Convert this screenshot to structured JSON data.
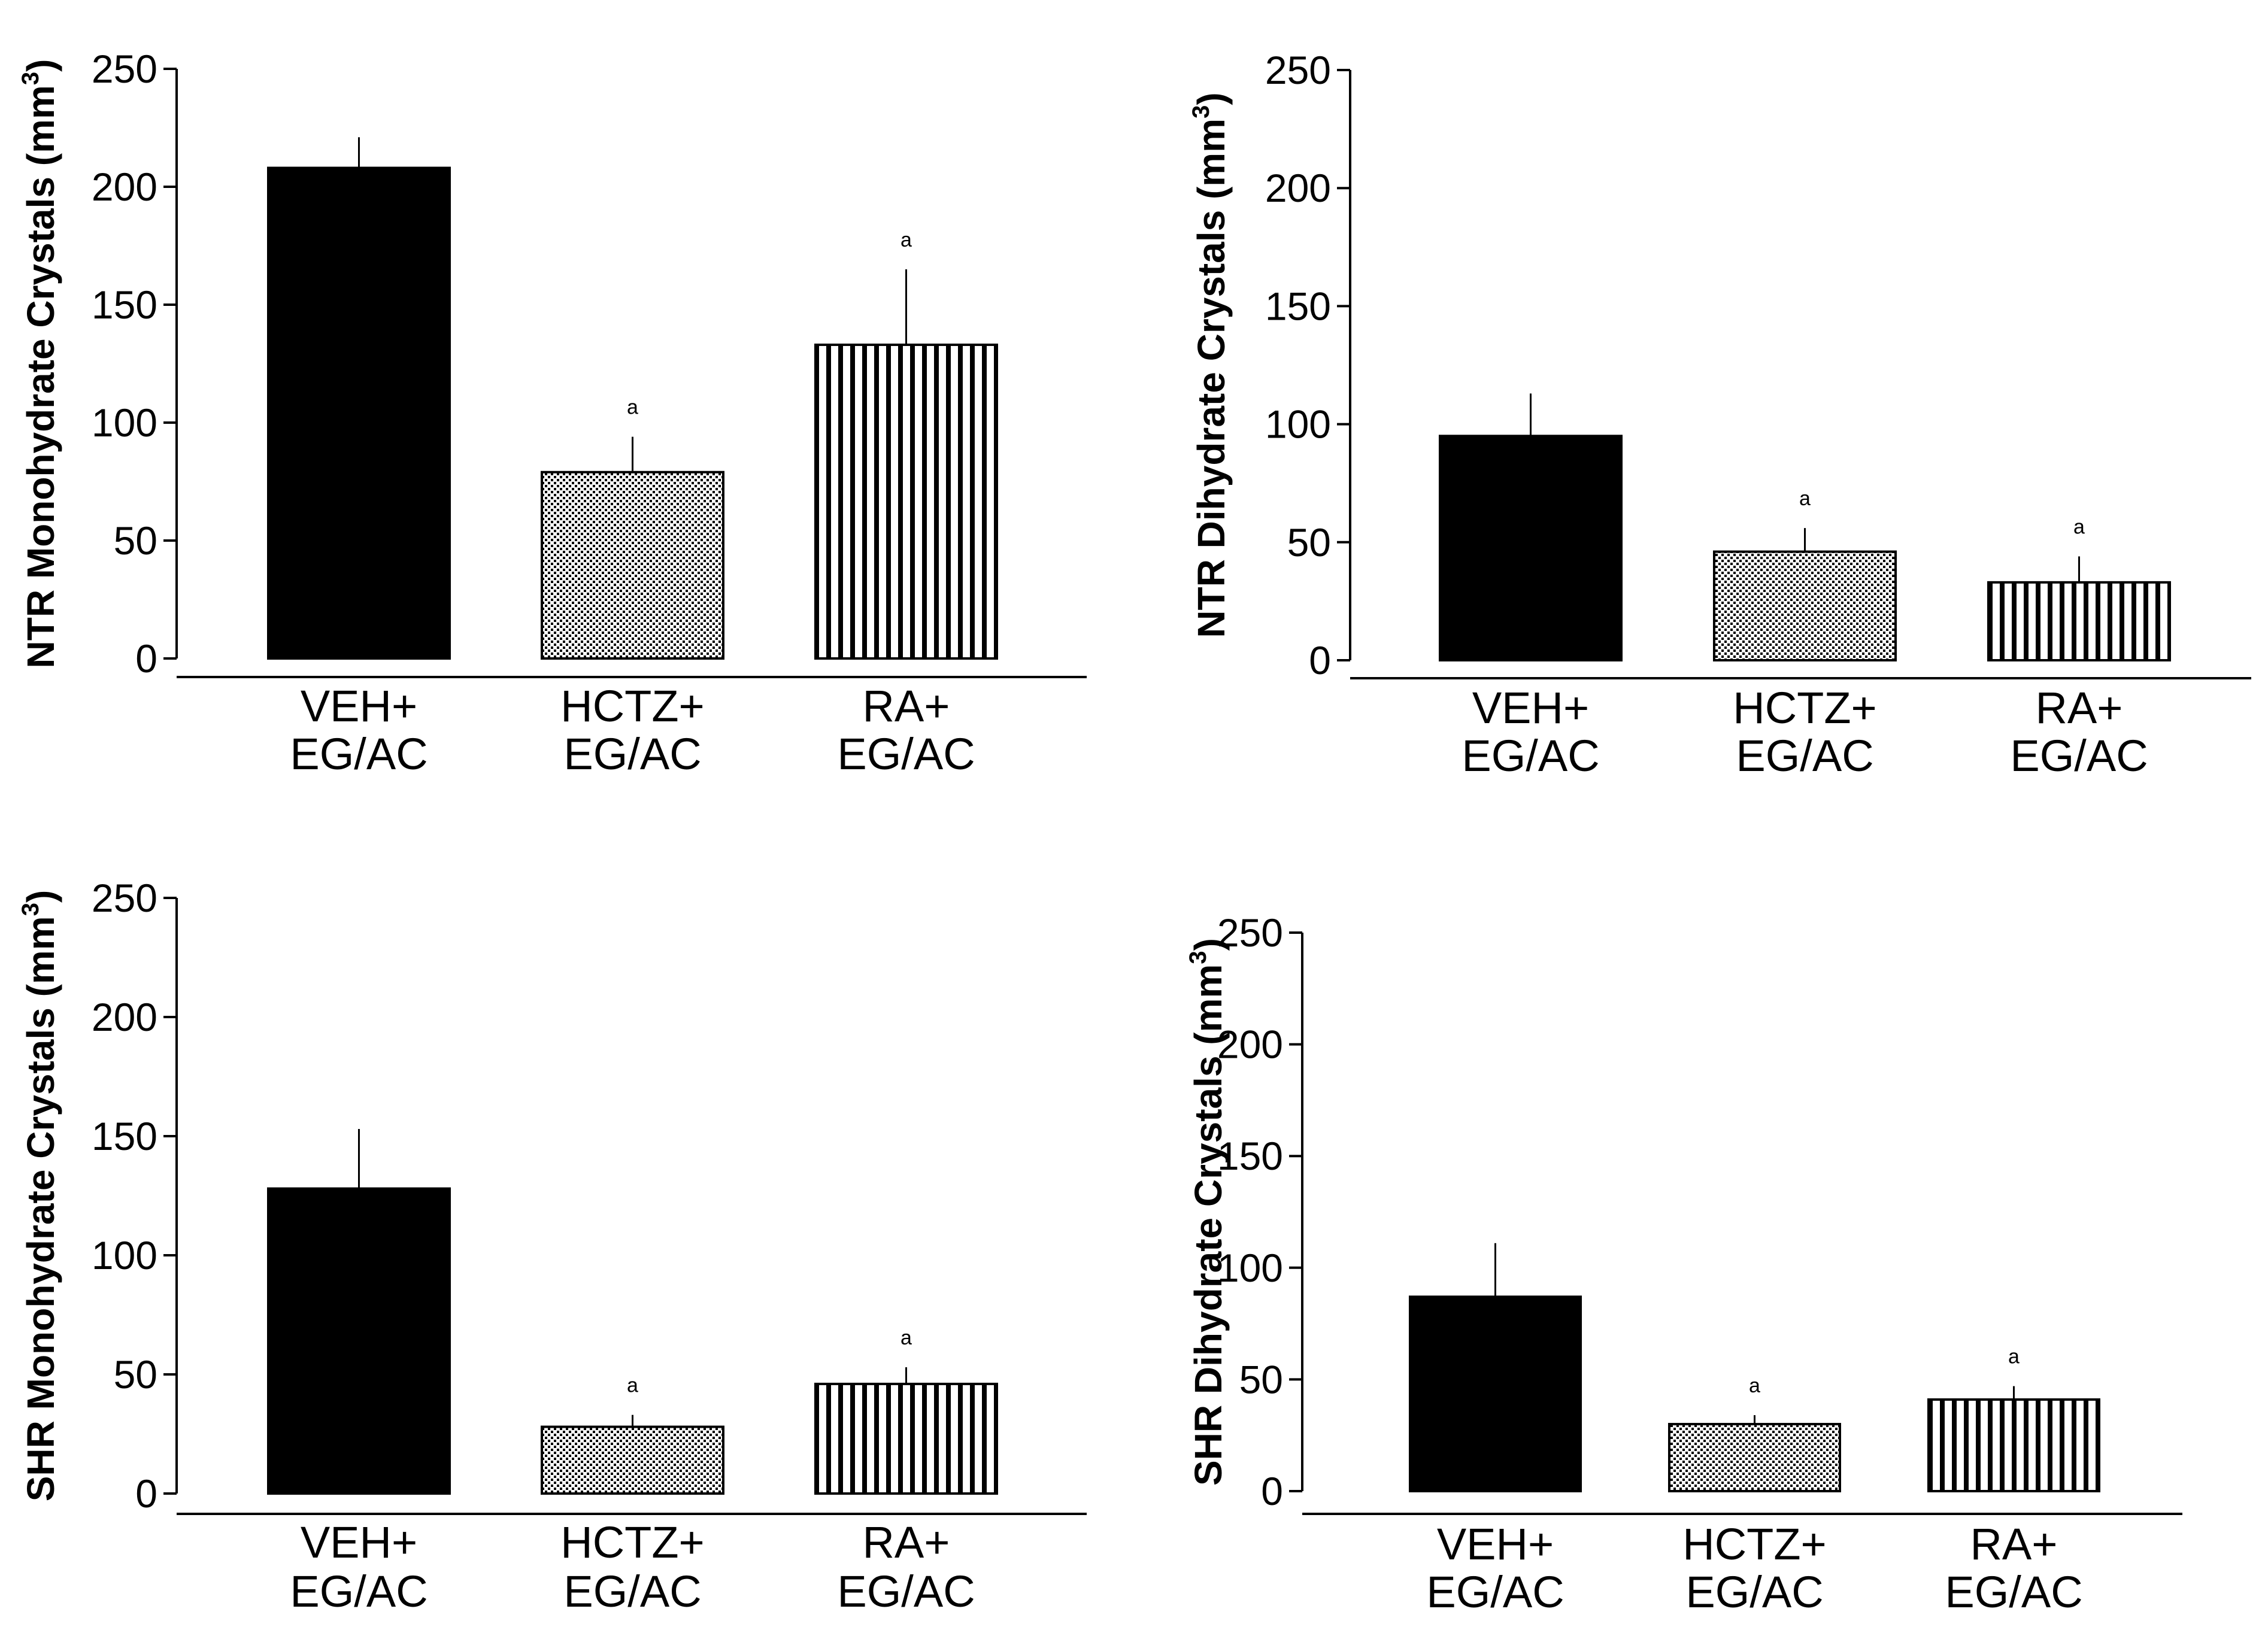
{
  "chart_data": [
    {
      "type": "bar",
      "ylabel": "NTR Monohydrate Crystals (mm³)",
      "ylabel_base": "NTR Monohydrate Crystals (mm",
      "ylabel_sup": "3",
      "ylabel_close": ")",
      "ylim": [
        0,
        250
      ],
      "yticks": [
        "0",
        "50",
        "100",
        "150",
        "200",
        "250"
      ],
      "categories": [
        [
          "VEH+",
          "EG/AC"
        ],
        [
          "HCTZ+",
          "EG/AC"
        ],
        [
          "RA+",
          "EG/AC"
        ]
      ],
      "values": [
        208,
        79,
        133
      ],
      "errors": [
        13,
        15,
        32
      ],
      "significance": [
        "",
        "a",
        "a"
      ],
      "patterns": [
        "solid",
        "dots",
        "vlines"
      ]
    },
    {
      "type": "bar",
      "ylabel": "NTR Dihydrate Crystals (mm³)",
      "ylabel_base": "NTR Dihydrate Crystals (mm",
      "ylabel_sup": "3",
      "ylabel_close": ")",
      "ylim": [
        0,
        250
      ],
      "yticks": [
        "0",
        "50",
        "100",
        "150",
        "200",
        "250"
      ],
      "categories": [
        [
          "VEH+",
          "EG/AC"
        ],
        [
          "HCTZ+",
          "EG/AC"
        ],
        [
          "RA+",
          "EG/AC"
        ]
      ],
      "values": [
        95,
        46,
        33
      ],
      "errors": [
        18,
        10,
        11
      ],
      "significance": [
        "",
        "a",
        "a"
      ],
      "patterns": [
        "solid",
        "dots",
        "vlines"
      ]
    },
    {
      "type": "bar",
      "ylabel": "SHR Monohydrate Crystals (mm³)",
      "ylabel_base": "SHR Monohydrate Crystals (mm",
      "ylabel_sup": "3",
      "ylabel_close": ")",
      "ylim": [
        0,
        250
      ],
      "yticks": [
        "0",
        "50",
        "100",
        "150",
        "200",
        "250"
      ],
      "categories": [
        [
          "VEH+",
          "EG/AC"
        ],
        [
          "HCTZ+",
          "EG/AC"
        ],
        [
          "RA+",
          "EG/AC"
        ]
      ],
      "values": [
        128,
        28,
        46
      ],
      "errors": [
        25,
        5,
        7
      ],
      "significance": [
        "",
        "a",
        "a"
      ],
      "patterns": [
        "solid",
        "dots",
        "vlines"
      ]
    },
    {
      "type": "bar",
      "ylabel": "SHR Dihydrate Crystals (mm³)",
      "ylabel_base": "SHR Dihydrate Crystals (mm",
      "ylabel_sup": "3",
      "ylabel_close": ")",
      "ylim": [
        0,
        250
      ],
      "yticks": [
        "0",
        "50",
        "100",
        "150",
        "200",
        "250"
      ],
      "categories": [
        [
          "VEH+",
          "EG/AC"
        ],
        [
          "HCTZ+",
          "EG/AC"
        ],
        [
          "RA+",
          "EG/AC"
        ]
      ],
      "values": [
        87,
        30,
        41
      ],
      "errors": [
        24,
        4,
        6
      ],
      "significance": [
        "",
        "a",
        "a"
      ],
      "patterns": [
        "solid",
        "dots",
        "vlines"
      ]
    }
  ]
}
